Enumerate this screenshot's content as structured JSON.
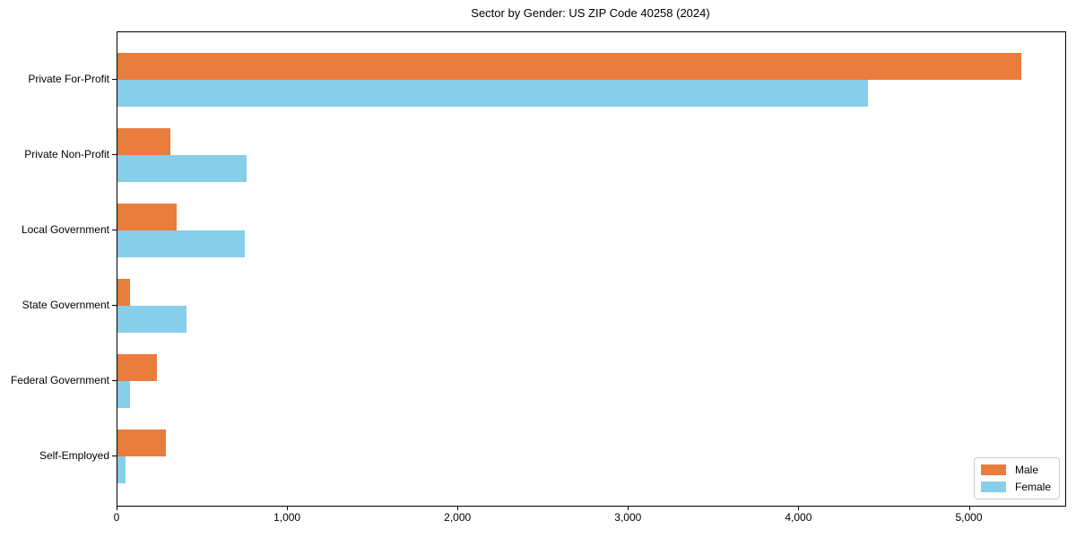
{
  "chart_data": {
    "type": "bar",
    "orientation": "horizontal",
    "title": "Sector by Gender: US ZIP Code 40258 (2024)",
    "xlabel": "",
    "ylabel": "",
    "grid": false,
    "categories": [
      "Private For-Profit",
      "Private Non-Profit",
      "Local Government",
      "State Government",
      "Federal Government",
      "Self-Employed"
    ],
    "series": [
      {
        "name": "Male",
        "color": "#e87d3e",
        "values": [
          5300,
          310,
          345,
          75,
          230,
          285
        ]
      },
      {
        "name": "Female",
        "color": "#87ceeb",
        "values": [
          4400,
          755,
          745,
          405,
          75,
          45
        ]
      }
    ],
    "xlim": [
      0,
      5560
    ],
    "x_ticks": [
      0,
      1000,
      2000,
      3000,
      4000,
      5000
    ],
    "x_tick_labels": [
      "0",
      "1,000",
      "2,000",
      "3,000",
      "4,000",
      "5,000"
    ],
    "legend": {
      "position": "lower right",
      "labels": [
        "Male",
        "Female"
      ]
    }
  }
}
